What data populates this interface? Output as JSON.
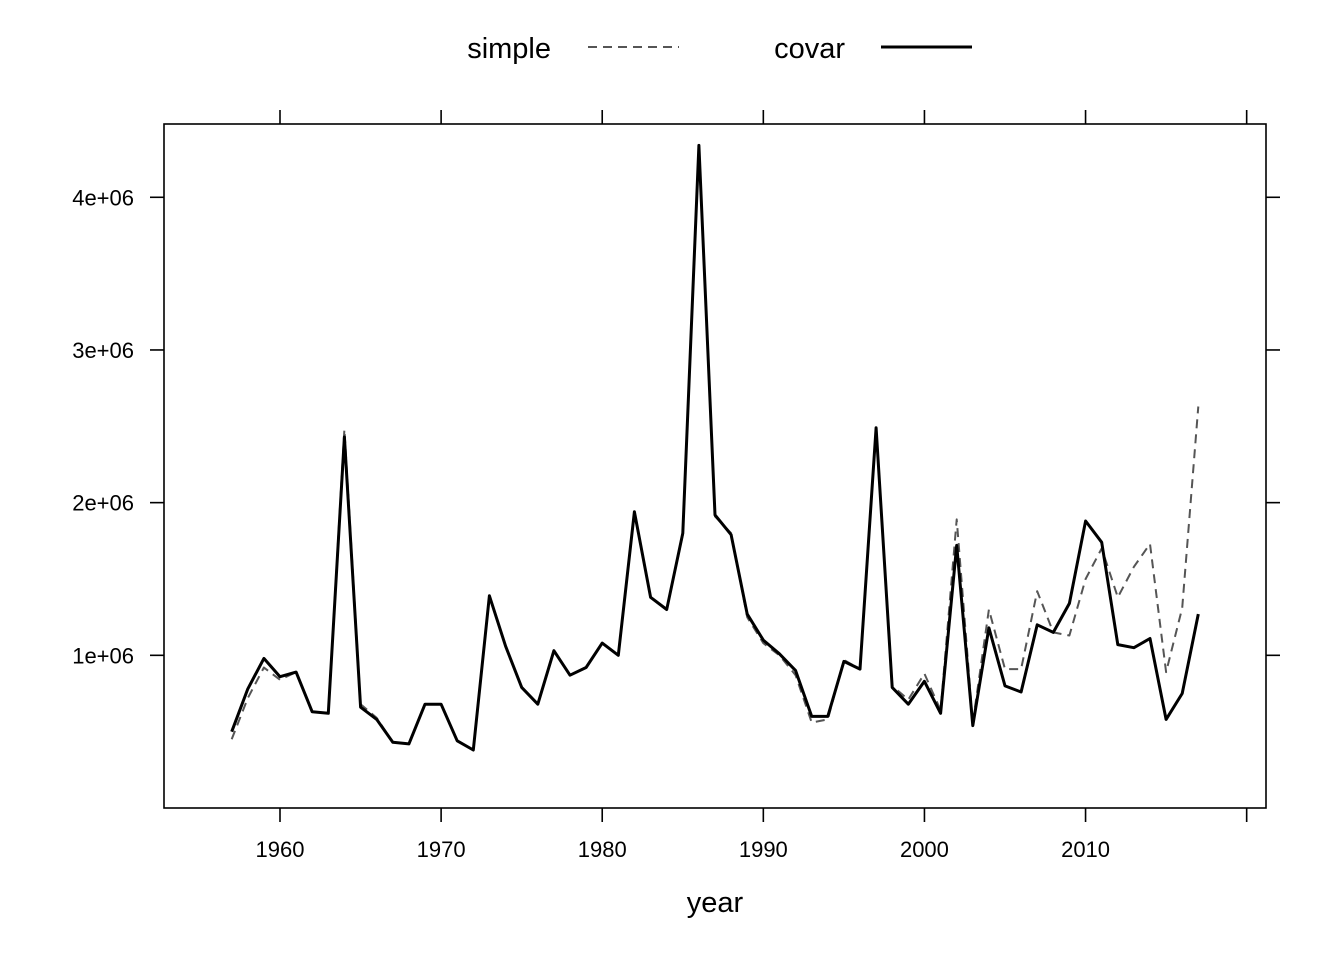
{
  "chart_data": {
    "type": "line",
    "title": "",
    "xlabel": "year",
    "ylabel": "",
    "xlim": [
      1952.8,
      2021.2
    ],
    "ylim": [
      0,
      4480000
    ],
    "x_ticks": [
      1960,
      1970,
      1980,
      1990,
      2000,
      2010
    ],
    "x_tick_labels": [
      "1960",
      "1970",
      "1980",
      "1990",
      "2000",
      "2010"
    ],
    "y_ticks": [
      1000000,
      2000000,
      3000000,
      4000000
    ],
    "y_tick_labels": [
      "1e+06",
      "2e+06",
      "3e+06",
      "4e+06"
    ],
    "grid": false,
    "legend": "top",
    "x": [
      1957,
      1958,
      1959,
      1960,
      1961,
      1962,
      1963,
      1964,
      1965,
      1966,
      1967,
      1968,
      1969,
      1970,
      1971,
      1972,
      1973,
      1974,
      1975,
      1976,
      1977,
      1978,
      1979,
      1980,
      1981,
      1982,
      1983,
      1984,
      1985,
      1986,
      1987,
      1988,
      1989,
      1990,
      1991,
      1992,
      1993,
      1994,
      1995,
      1996,
      1997,
      1998,
      1999,
      2000,
      2001,
      2002,
      2003,
      2004,
      2005,
      2006,
      2007,
      2008,
      2009,
      2010,
      2011,
      2012,
      2013,
      2014,
      2015,
      2016,
      2017
    ],
    "series": [
      {
        "name": "simple",
        "style": "dashed",
        "color": "#555555",
        "values": [
          450000,
          720000,
          920000,
          840000,
          890000,
          630000,
          620000,
          2480000,
          680000,
          590000,
          430000,
          420000,
          680000,
          680000,
          440000,
          380000,
          1390000,
          1060000,
          790000,
          680000,
          1030000,
          870000,
          920000,
          1080000,
          1000000,
          1930000,
          1380000,
          1300000,
          1790000,
          4330000,
          1910000,
          1800000,
          1250000,
          1080000,
          1000000,
          870000,
          560000,
          580000,
          970000,
          910000,
          2490000,
          800000,
          710000,
          880000,
          640000,
          1890000,
          560000,
          1300000,
          910000,
          910000,
          1420000,
          1150000,
          1130000,
          1500000,
          1700000,
          1380000,
          1580000,
          1730000,
          890000,
          1310000,
          2630000
        ]
      },
      {
        "name": "covar",
        "style": "solid",
        "color": "#000000",
        "values": [
          500000,
          780000,
          980000,
          860000,
          890000,
          630000,
          620000,
          2430000,
          660000,
          580000,
          430000,
          420000,
          680000,
          680000,
          440000,
          380000,
          1390000,
          1060000,
          790000,
          680000,
          1030000,
          870000,
          920000,
          1080000,
          1000000,
          1940000,
          1380000,
          1300000,
          1800000,
          4340000,
          1920000,
          1790000,
          1270000,
          1100000,
          1010000,
          900000,
          600000,
          600000,
          960000,
          910000,
          2490000,
          790000,
          680000,
          830000,
          620000,
          1720000,
          540000,
          1180000,
          800000,
          760000,
          1200000,
          1150000,
          1340000,
          1880000,
          1740000,
          1070000,
          1050000,
          1110000,
          580000,
          750000,
          1270000
        ]
      }
    ]
  }
}
